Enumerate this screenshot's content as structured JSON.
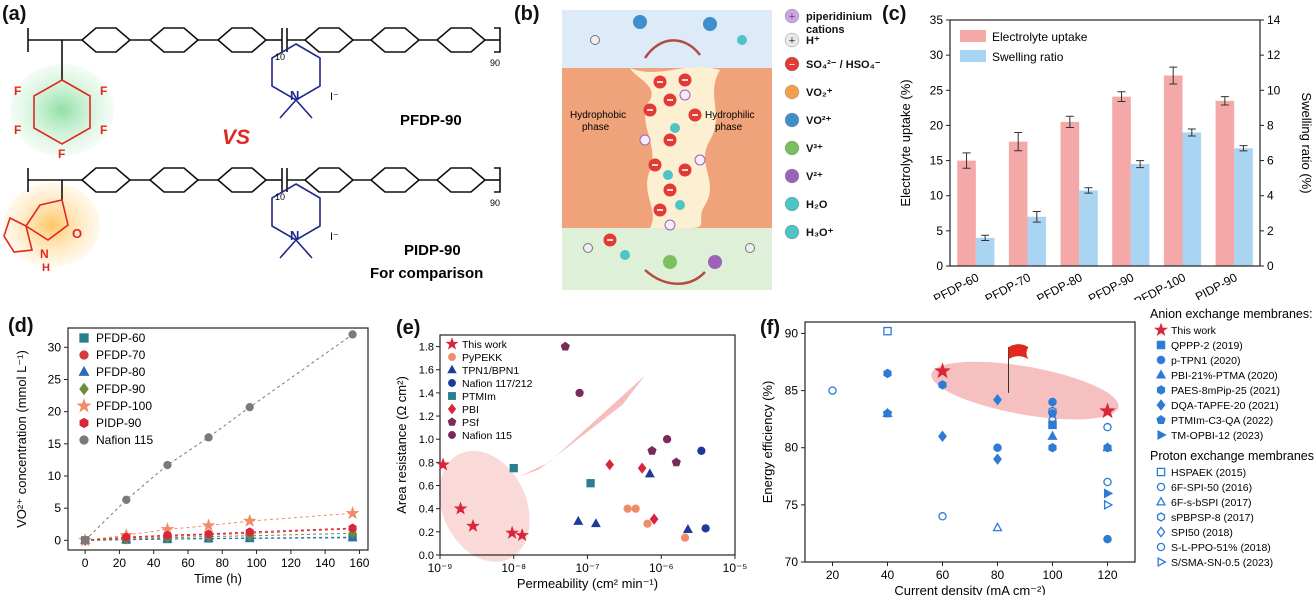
{
  "panel_a": {
    "letter": "(a)",
    "mol1_name": "PFDP-90",
    "mol2_name": "PIDP-90",
    "vs": "VS",
    "comparison": "For comparison",
    "sub_10": "10",
    "sub_90": "90",
    "iodide": "I⁻",
    "F": "F",
    "N": "N",
    "O": "O",
    "H": "H"
  },
  "panel_b": {
    "letter": "(b)",
    "hydrophobic": [
      "Hydrophobic",
      "phase"
    ],
    "hydrophilic": [
      "Hydrophilic",
      "phase"
    ],
    "legend": [
      {
        "symbol": "+",
        "label": "piperidinium",
        "label2": "cations",
        "color": "#c9a6e0",
        "sign_color": "#7a2f9c"
      },
      {
        "symbol": "+",
        "label": "H⁺",
        "label2": "",
        "color": "#e8e8e8",
        "sign_color": "#333333"
      },
      {
        "symbol": "−",
        "label": "SO₄²⁻ / HSO₄⁻",
        "label2": "",
        "color": "#e23b35",
        "sign_color": "#ffffff"
      },
      {
        "symbol": "",
        "label": "VO₂⁺",
        "label2": "",
        "color": "#f0a04a",
        "sign_color": ""
      },
      {
        "symbol": "",
        "label": "VO²⁺",
        "label2": "",
        "color": "#3f8fcc",
        "sign_color": ""
      },
      {
        "symbol": "",
        "label": "V³⁺",
        "label2": "",
        "color": "#7cbf5e",
        "sign_color": ""
      },
      {
        "symbol": "",
        "label": "V²⁺",
        "label2": "",
        "color": "#9b62b5",
        "sign_color": ""
      },
      {
        "symbol": "",
        "label": "H₂O",
        "label2": "",
        "color": "#4ec4c4",
        "sign_color": ""
      },
      {
        "symbol": "",
        "label": "H₃O⁺",
        "label2": "",
        "color": "#4ec4c4",
        "sign_color": ""
      }
    ]
  },
  "chart_data": [
    {
      "panel": "(c)",
      "type": "bar",
      "categories": [
        "PFDP-60",
        "PFDP-70",
        "PFDP-80",
        "PFDP-90",
        "PFDP-100",
        "PIDP-90"
      ],
      "series": [
        {
          "name": "Electrolyte uptake",
          "axis": "left",
          "color": "#f4a8a8",
          "values": [
            15.0,
            17.7,
            20.5,
            24.1,
            27.1,
            23.5
          ],
          "errors": [
            1.1,
            1.3,
            0.8,
            0.7,
            1.2,
            0.6
          ]
        },
        {
          "name": "Swelling ratio",
          "axis": "right",
          "color": "#a9d4f2",
          "values": [
            1.6,
            2.8,
            4.3,
            5.8,
            7.6,
            6.7
          ],
          "errors": [
            0.15,
            0.3,
            0.15,
            0.2,
            0.2,
            0.15
          ]
        }
      ],
      "ylabel": "Electrolyte uptake (%)",
      "y2label": "Swelling ratio (%)",
      "ylim": [
        0,
        35
      ],
      "y2lim": [
        0,
        14
      ],
      "yticks": [
        "0",
        "5",
        "10",
        "15",
        "20",
        "25",
        "30",
        "35"
      ],
      "y2ticks": [
        "0",
        "2",
        "4",
        "6",
        "8",
        "10",
        "12",
        "14"
      ],
      "legend_position": "top-left"
    },
    {
      "panel": "(d)",
      "type": "scatter",
      "xlabel": "Time (h)",
      "ylabel": "VO²⁺ concentration (mmol L⁻¹)",
      "xlim": [
        -10,
        165
      ],
      "ylim": [
        -1.5,
        33
      ],
      "xticks": [
        "0",
        "20",
        "40",
        "60",
        "80",
        "100",
        "120",
        "140",
        "160"
      ],
      "yticks": [
        "0",
        "5",
        "10",
        "15",
        "20",
        "25",
        "30"
      ],
      "x": [
        0,
        24,
        48,
        72,
        96,
        156
      ],
      "series": [
        {
          "name": "PFDP-60",
          "marker": "square",
          "color": "#2a7f8f",
          "values": [
            0,
            0.1,
            0.2,
            0.3,
            0.35,
            0.5
          ]
        },
        {
          "name": "PFDP-70",
          "marker": "circle",
          "color": "#d93a3a",
          "values": [
            0,
            0.4,
            0.6,
            0.9,
            1.1,
            1.8
          ]
        },
        {
          "name": "PFDP-80",
          "marker": "triangle",
          "color": "#2c6db0",
          "values": [
            0,
            0.1,
            0.2,
            0.25,
            0.3,
            0.4
          ]
        },
        {
          "name": "PFDP-90",
          "marker": "diamond",
          "color": "#6b8c3a",
          "values": [
            0,
            0.2,
            0.4,
            0.6,
            0.7,
            1.1
          ]
        },
        {
          "name": "PFDP-100",
          "marker": "star",
          "color": "#f08c6a",
          "values": [
            0,
            0.8,
            1.7,
            2.3,
            3.0,
            4.2
          ]
        },
        {
          "name": "PIDP-90",
          "marker": "hexagon",
          "color": "#d8263a",
          "values": [
            0,
            0.5,
            0.8,
            1.0,
            1.3,
            1.9
          ]
        },
        {
          "name": "Nafion 115",
          "marker": "sphere",
          "color": "#7a7a7a",
          "values": [
            0,
            6.3,
            11.7,
            16.0,
            20.7,
            32.0
          ]
        }
      ],
      "legend_position": "top-left"
    },
    {
      "panel": "(e)",
      "type": "scatter",
      "xlabel": "Permeability (cm² min⁻¹)",
      "ylabel": "Area resistance (Ω cm²)",
      "xscale": "log",
      "xlim": [
        1e-09,
        1e-05
      ],
      "ylim": [
        0.0,
        1.9
      ],
      "xticks": [
        "10⁻⁹",
        "10⁻⁸",
        "10⁻⁷",
        "10⁻⁶",
        "10⁻⁵"
      ],
      "yticks": [
        "0.0",
        "0.2",
        "0.4",
        "0.6",
        "0.8",
        "1.0",
        "1.2",
        "1.4",
        "1.6",
        "1.8"
      ],
      "series": [
        {
          "name": "This work",
          "marker": "star",
          "color": "#d8263a",
          "points": [
            [
              1.1e-09,
              0.78
            ],
            [
              1.9e-09,
              0.4
            ],
            [
              2.8e-09,
              0.25
            ],
            [
              9.5e-09,
              0.19
            ],
            [
              1.3e-08,
              0.17
            ]
          ]
        },
        {
          "name": "PyPEKK",
          "marker": "circle",
          "color": "#f08c6a",
          "points": [
            [
              3.5e-07,
              0.4
            ],
            [
              6.5e-07,
              0.27
            ],
            [
              2.1e-06,
              0.15
            ],
            [
              4.5e-07,
              0.4
            ]
          ]
        },
        {
          "name": "TPN1/BPN1",
          "marker": "triangle",
          "color": "#1f3a9a",
          "points": [
            [
              7.5e-08,
              0.29
            ],
            [
              1.3e-07,
              0.27
            ],
            [
              7e-07,
              0.7
            ],
            [
              2.3e-06,
              0.22
            ]
          ]
        },
        {
          "name": "Nafion 117/212",
          "marker": "sphere",
          "color": "#1f3a9a",
          "points": [
            [
              3.5e-06,
              0.9
            ],
            [
              4e-06,
              0.23
            ]
          ]
        },
        {
          "name": "PTMIm",
          "marker": "square",
          "color": "#2a7f8f",
          "points": [
            [
              1e-08,
              0.75
            ],
            [
              1.1e-07,
              0.62
            ]
          ]
        },
        {
          "name": "PBI",
          "marker": "diamond",
          "color": "#d8263a",
          "points": [
            [
              2e-07,
              0.78
            ],
            [
              5.5e-07,
              0.75
            ],
            [
              8e-07,
              0.31
            ]
          ]
        },
        {
          "name": "PSf",
          "marker": "pentagon",
          "color": "#7a2a5a",
          "points": [
            [
              5e-08,
              1.8
            ],
            [
              7.5e-07,
              0.9
            ],
            [
              1.6e-06,
              0.8
            ]
          ]
        },
        {
          "name": "Nafion 115",
          "marker": "sphere",
          "color": "#7a2a5a",
          "points": [
            [
              7.8e-08,
              1.4
            ],
            [
              1.2e-06,
              1.0
            ]
          ]
        }
      ],
      "legend_position": "top-left"
    },
    {
      "panel": "(f)",
      "type": "scatter",
      "xlabel": "Current density (mA cm⁻²)",
      "ylabel": "Energy efficiency (%)",
      "xlim": [
        10,
        130
      ],
      "ylim": [
        70,
        91
      ],
      "xticks": [
        "20",
        "40",
        "60",
        "80",
        "100",
        "120"
      ],
      "yticks": [
        "70",
        "75",
        "80",
        "85",
        "90"
      ],
      "legend_groups": [
        "Anion exchange membranes:",
        "Proton exchange membranes:"
      ],
      "series": [
        {
          "name": "This work",
          "group": 0,
          "marker": "star",
          "filled": true,
          "color": "#d8263a",
          "points": [
            [
              60,
              86.7
            ],
            [
              120,
              83.2
            ]
          ]
        },
        {
          "name": "QPPP-2 (2019)",
          "group": 0,
          "marker": "square",
          "filled": true,
          "color": "#2e7bd6",
          "points": [
            [
              100,
              82.0
            ]
          ]
        },
        {
          "name": "p-TPN1 (2020)",
          "group": 0,
          "marker": "circle",
          "filled": true,
          "color": "#2e7bd6",
          "points": [
            [
              80,
              80.0
            ],
            [
              100,
              84.0
            ],
            [
              120,
              72.0
            ]
          ]
        },
        {
          "name": "PBI-21%-PTMA (2020)",
          "group": 0,
          "marker": "triangle",
          "filled": true,
          "color": "#2e7bd6",
          "points": [
            [
              40,
              83.0
            ],
            [
              100,
              81.0
            ],
            [
              120,
              80.0
            ]
          ]
        },
        {
          "name": "PAES-8mPip-25 (2021)",
          "group": 0,
          "marker": "hexagon",
          "filled": true,
          "color": "#2e7bd6",
          "points": [
            [
              40,
              86.5
            ],
            [
              60,
              85.5
            ],
            [
              100,
              80.0
            ],
            [
              120,
              80.0
            ]
          ]
        },
        {
          "name": "DQA-TAPFE-20 (2021)",
          "group": 0,
          "marker": "diamond",
          "filled": true,
          "color": "#2e7bd6",
          "points": [
            [
              60,
              81.0
            ],
            [
              80,
              79.0
            ],
            [
              80,
              84.2
            ]
          ]
        },
        {
          "name": "PTMIm-C3-QA (2022)",
          "group": 0,
          "marker": "pentagon",
          "filled": true,
          "color": "#2e7bd6",
          "points": [
            [
              40,
              83.0
            ],
            [
              100,
              83.0
            ]
          ]
        },
        {
          "name": "TM-OPBI-12 (2023)",
          "group": 0,
          "marker": "triangle-right",
          "filled": true,
          "color": "#2e7bd6",
          "points": [
            [
              120,
              76.0
            ]
          ]
        },
        {
          "name": "HSPAEK (2015)",
          "group": 1,
          "marker": "square",
          "filled": false,
          "color": "#2e7bd6",
          "points": [
            [
              40,
              90.2
            ]
          ]
        },
        {
          "name": "6F-SPI-50 (2016)",
          "group": 1,
          "marker": "circle",
          "filled": false,
          "color": "#2e7bd6",
          "points": [
            [
              20,
              85.0
            ],
            [
              60,
              74.0
            ],
            [
              120,
              81.8
            ]
          ]
        },
        {
          "name": "6F-s-bSPI (2017)",
          "group": 1,
          "marker": "triangle",
          "filled": false,
          "color": "#2e7bd6",
          "points": [
            [
              80,
              73.0
            ]
          ]
        },
        {
          "name": "sPBPSP-8 (2017)",
          "group": 1,
          "marker": "hexagon",
          "filled": false,
          "color": "#2e7bd6",
          "points": [
            [
              100,
              83.2
            ]
          ]
        },
        {
          "name": "SPI50 (2018)",
          "group": 1,
          "marker": "diamond",
          "filled": false,
          "color": "#2e7bd6",
          "points": [
            [
              100,
              82.5
            ]
          ]
        },
        {
          "name": "S-L-PPO-51% (2018)",
          "group": 1,
          "marker": "circle",
          "filled": false,
          "color": "#2e7bd6",
          "points": [
            [
              120,
              77.0
            ]
          ]
        },
        {
          "name": "S/SMA-SN-0.5 (2023)",
          "group": 1,
          "marker": "triangle-right",
          "filled": false,
          "color": "#2e7bd6",
          "points": [
            [
              120,
              75.0
            ]
          ]
        }
      ]
    }
  ]
}
